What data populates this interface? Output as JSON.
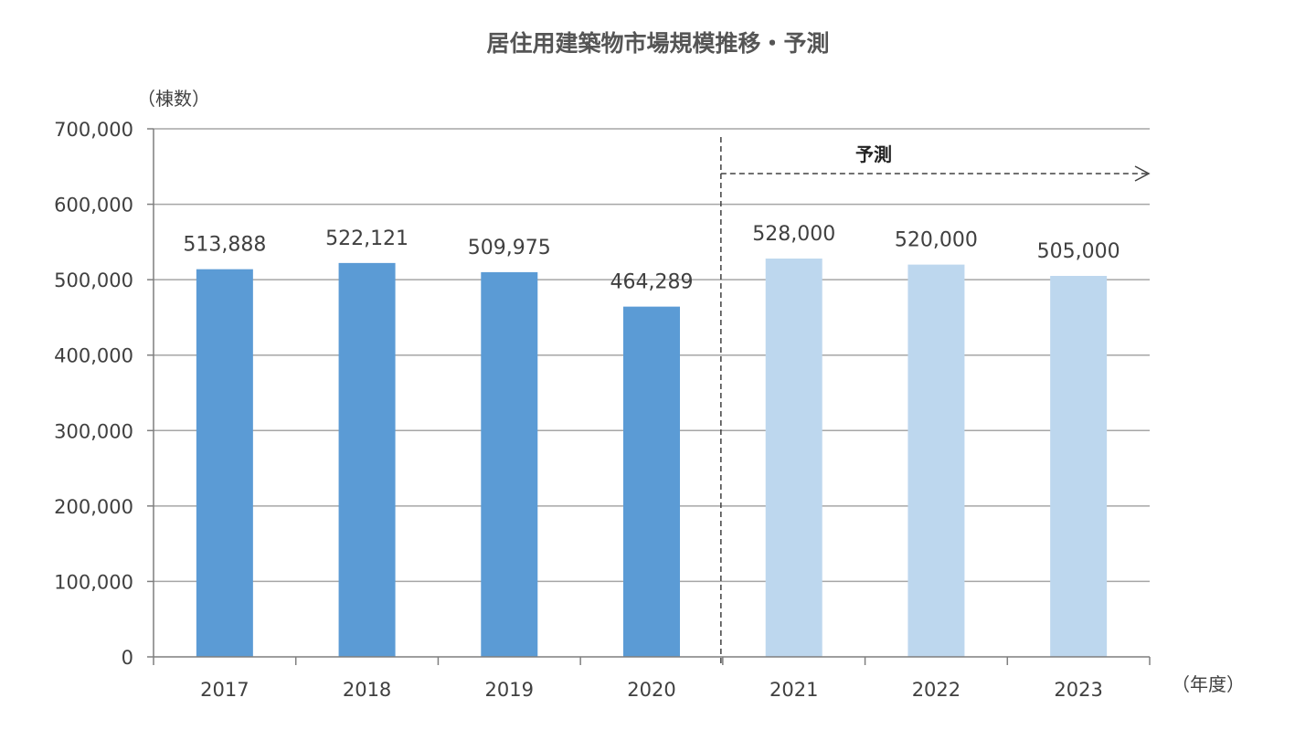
{
  "chart_data": {
    "type": "bar",
    "title": "居住用建築物市場規模推移・予測",
    "xlabel": "（年度）",
    "ylabel": "（棟数）",
    "categories": [
      "2017",
      "2018",
      "2019",
      "2020",
      "2021",
      "2022",
      "2023"
    ],
    "values": [
      513888,
      522121,
      509975,
      464289,
      528000,
      520000,
      505000
    ],
    "value_labels": [
      "513,888",
      "522,121",
      "509,975",
      "464,289",
      "528,000",
      "520,000",
      "505,000"
    ],
    "forecast": [
      false,
      false,
      false,
      false,
      true,
      true,
      true
    ],
    "ylim": [
      0,
      700000
    ],
    "yticks": [
      0,
      100000,
      200000,
      300000,
      400000,
      500000,
      600000,
      700000
    ],
    "ytick_labels": [
      "0",
      "100,000",
      "200,000",
      "300,000",
      "400,000",
      "500,000",
      "600,000",
      "700,000"
    ],
    "grid": true,
    "legend": null,
    "annotation": {
      "label": "予測",
      "start_category": "2021",
      "style": "dashed vertical divider with dashed arrow to the right"
    },
    "colors": {
      "actual": "#5b9bd5",
      "forecast": "#bdd7ee",
      "grid": "#a6a6a6",
      "axis": "#7f7f7f",
      "divider": "#404040"
    }
  }
}
